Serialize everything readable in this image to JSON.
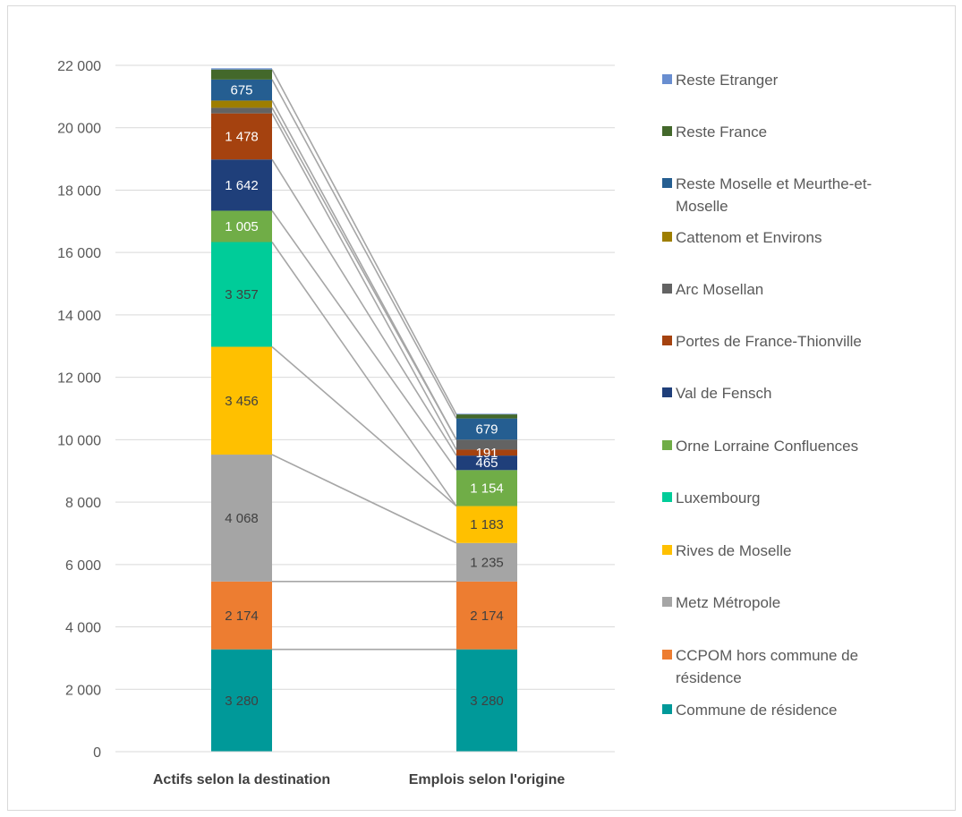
{
  "chart_data": {
    "type": "bar",
    "stacked": true,
    "categories": [
      "Actifs selon la destination",
      "Emplois selon l'origine"
    ],
    "ylim": [
      0,
      22000
    ],
    "yticks": [
      0,
      2000,
      4000,
      6000,
      8000,
      10000,
      12000,
      14000,
      16000,
      18000,
      20000,
      22000
    ],
    "ytick_labels": [
      "0",
      "2 000",
      "4 000",
      "6 000",
      "8 000",
      "10 000",
      "12 000",
      "14 000",
      "16 000",
      "18 000",
      "20 000",
      "22 000"
    ],
    "grid": true,
    "legend_position": "right",
    "series": [
      {
        "name": "Commune de résidence",
        "color": "#009999",
        "text_color": "#404040",
        "values": [
          3280,
          3280
        ],
        "labels": [
          "3 280",
          "3 280"
        ]
      },
      {
        "name": "CCPOM hors commune de résidence",
        "color": "#ED7D31",
        "text_color": "#404040",
        "values": [
          2174,
          2174
        ],
        "labels": [
          "2 174",
          "2 174"
        ]
      },
      {
        "name": "Metz Métropole",
        "color": "#A5A5A5",
        "text_color": "#404040",
        "values": [
          4068,
          1235
        ],
        "labels": [
          "4 068",
          "1 235"
        ]
      },
      {
        "name": "Rives de Moselle",
        "color": "#FFC000",
        "text_color": "#404040",
        "values": [
          3456,
          1183
        ],
        "labels": [
          "3 456",
          "1 183"
        ]
      },
      {
        "name": "Luxembourg",
        "color": "#00CC99",
        "text_color": "#404040",
        "values": [
          3357,
          0
        ],
        "labels": [
          "3 357",
          ""
        ]
      },
      {
        "name": "Orne Lorraine Confluences",
        "color": "#70AD47",
        "text_color": "#ffffff",
        "values": [
          1005,
          1154
        ],
        "labels": [
          "1 005",
          "1 154"
        ]
      },
      {
        "name": "Val de Fensch",
        "color": "#1F3F7A",
        "text_color": "#ffffff",
        "values": [
          1642,
          465
        ],
        "labels": [
          "1 642",
          "465"
        ]
      },
      {
        "name": "Portes de France-Thionville",
        "color": "#A5420F",
        "text_color": "#ffffff",
        "values": [
          1478,
          191
        ],
        "labels": [
          "1 478",
          "191"
        ]
      },
      {
        "name": "Arc Mosellan",
        "color": "#636363",
        "text_color": "#ffffff",
        "values": [
          180,
          320
        ],
        "labels": [
          "",
          ""
        ]
      },
      {
        "name": "Cattenom et Environs",
        "color": "#9E7E00",
        "text_color": "#ffffff",
        "values": [
          230,
          0
        ],
        "labels": [
          "",
          ""
        ]
      },
      {
        "name": "Reste Moselle et Meurthe-et-Moselle",
        "color": "#255E91",
        "text_color": "#ffffff",
        "values": [
          675,
          679
        ],
        "labels": [
          "675",
          "679"
        ]
      },
      {
        "name": "Reste France",
        "color": "#43682B",
        "text_color": "#ffffff",
        "values": [
          320,
          130
        ],
        "labels": [
          "",
          ""
        ]
      },
      {
        "name": "Reste Etranger",
        "color": "#698ED0",
        "text_color": "#ffffff",
        "values": [
          40,
          20
        ],
        "labels": [
          "",
          ""
        ]
      }
    ],
    "legend_lines": [
      [
        "Reste Etranger"
      ],
      [
        "Reste France"
      ],
      [
        "Reste Moselle et Meurthe-et-",
        "Moselle"
      ],
      [
        "Cattenom et Environs"
      ],
      [
        "Arc Mosellan"
      ],
      [
        "Portes de France-Thionville"
      ],
      [
        "Val de Fensch"
      ],
      [
        "Orne Lorraine Confluences"
      ],
      [
        "Luxembourg"
      ],
      [
        "Rives de Moselle"
      ],
      [
        "Metz Métropole"
      ],
      [
        "CCPOM hors commune de",
        "résidence"
      ],
      [
        "Commune de résidence"
      ]
    ]
  }
}
